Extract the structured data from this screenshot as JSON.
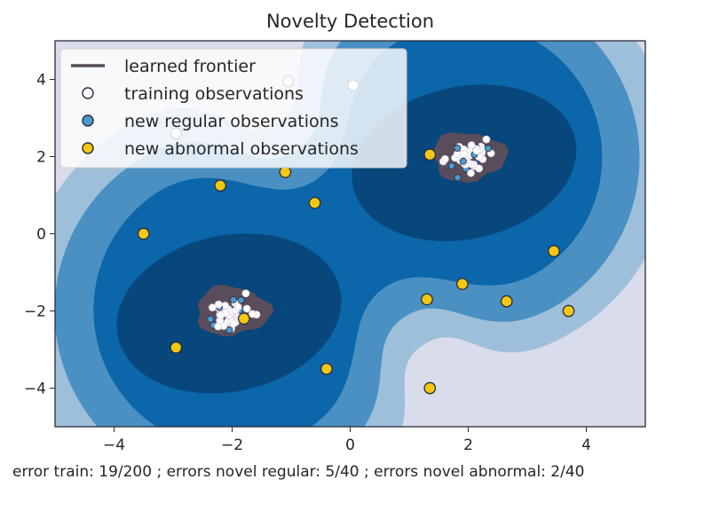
{
  "chart_data": {
    "type": "scatter",
    "title": "Novelty Detection",
    "xlim": [
      -5,
      5
    ],
    "ylim": [
      -5,
      5
    ],
    "xticks": [
      -4,
      -2,
      0,
      2,
      4
    ],
    "yticks": [
      4,
      2,
      0,
      -2,
      -4
    ],
    "xtick_labels": [
      "−4",
      "−2",
      "0",
      "2",
      "4"
    ],
    "ytick_labels": [
      "4",
      "2",
      "0",
      "−2",
      "−4"
    ],
    "grid": false,
    "legend_location": "upper-left",
    "colors": {
      "contour_levels": [
        "#d9dcea",
        "#9ebfda",
        "#4a90c2",
        "#0b66aa",
        "#08477c"
      ],
      "frontier": "#5a4d5b",
      "training_face": "#ffffff",
      "regular_face": "#4a9ad2",
      "abnormal_face": "#f2c812",
      "edge": "#2b2b3b",
      "axes": "#2b2b3b"
    },
    "cluster_centers": [
      [
        -2,
        -2
      ],
      [
        2,
        2
      ]
    ],
    "legend": [
      {
        "label": "learned frontier",
        "marker": "line"
      },
      {
        "label": "training observations",
        "marker": "training"
      },
      {
        "label": "new regular observations",
        "marker": "regular"
      },
      {
        "label": "new abnormal observations",
        "marker": "abnormal"
      }
    ],
    "series": [
      {
        "name": "new abnormal observations",
        "points": [
          [
            -3.5,
            0
          ],
          [
            -2.2,
            1.25
          ],
          [
            -1.1,
            1.6
          ],
          [
            -0.6,
            0.8
          ],
          [
            -2.95,
            -2.95
          ],
          [
            -1.8,
            -2.2
          ],
          [
            -0.4,
            -3.5
          ],
          [
            1.35,
            2.05
          ],
          [
            1.3,
            -1.7
          ],
          [
            1.9,
            -1.3
          ],
          [
            2.65,
            -1.75
          ],
          [
            3.45,
            -0.45
          ],
          [
            3.7,
            -2.0
          ],
          [
            1.35,
            -4.0
          ]
        ]
      }
    ],
    "training_points_partial": [
      [
        -2.95,
        2.6
      ],
      [
        -1.05,
        3.95
      ],
      [
        0.05,
        3.85
      ]
    ]
  },
  "footer": "error train: 19/200 ; errors novel regular: 5/40 ; errors novel abnormal: 2/40"
}
